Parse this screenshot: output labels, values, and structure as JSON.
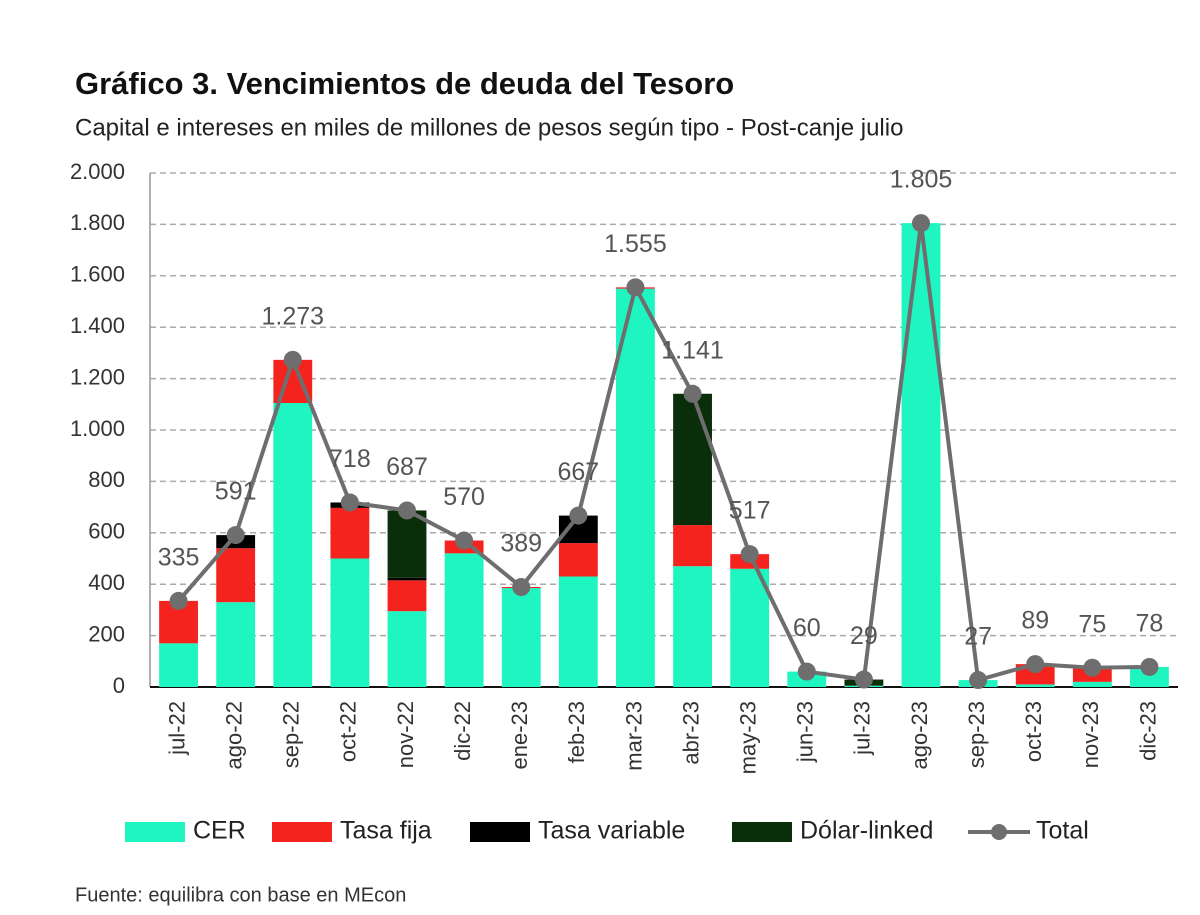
{
  "chart_data": {
    "type": "bar",
    "title": "Gráfico 3. Vencimientos de deuda del Tesoro",
    "subtitle": "Capital e intereses en miles de millones de pesos según tipo - Post-canje julio",
    "source": "Fuente: equilibra con base en MEcon",
    "stacked": true,
    "categories": [
      "jul-22",
      "ago-22",
      "sep-22",
      "oct-22",
      "nov-22",
      "dic-22",
      "ene-23",
      "feb-23",
      "mar-23",
      "abr-23",
      "may-23",
      "jun-23",
      "jul-23",
      "ago-23",
      "sep-23",
      "oct-23",
      "nov-23",
      "dic-23"
    ],
    "series": [
      {
        "name": "CER",
        "color": "#1ff5c0",
        "values": [
          170,
          330,
          1105,
          500,
          295,
          520,
          385,
          430,
          1550,
          470,
          460,
          60,
          5,
          1805,
          27,
          10,
          20,
          78
        ]
      },
      {
        "name": "Tasa fija",
        "color": "#f5231e",
        "values": [
          165,
          210,
          168,
          197,
          120,
          50,
          4,
          130,
          5,
          160,
          57,
          0,
          0,
          0,
          0,
          79,
          55,
          0
        ]
      },
      {
        "name": "Tasa variable",
        "color": "#000000",
        "values": [
          0,
          51,
          0,
          21,
          10,
          0,
          0,
          107,
          0,
          0,
          0,
          0,
          0,
          0,
          0,
          0,
          0,
          0
        ]
      },
      {
        "name": "Dólar-linked",
        "color": "#0a2e0a",
        "values": [
          0,
          0,
          0,
          0,
          262,
          0,
          0,
          0,
          0,
          511,
          0,
          0,
          24,
          0,
          0,
          0,
          0,
          0
        ]
      },
      {
        "name": "Total",
        "type": "line",
        "color": "#6e6e6e",
        "values": [
          335,
          591,
          1273,
          718,
          687,
          570,
          389,
          667,
          1555,
          1141,
          517,
          60,
          29,
          1805,
          27,
          89,
          75,
          78
        ],
        "value_labels": [
          "335",
          "591",
          "1.273",
          "718",
          "687",
          "570",
          "389",
          "667",
          "1.555",
          "1.141",
          "517",
          "60",
          "29",
          "1.805",
          "27",
          "89",
          "75",
          "78"
        ]
      }
    ],
    "ylim": [
      0,
      2000
    ],
    "yticks": [
      0,
      200,
      400,
      600,
      800,
      {
        "value": 1000,
        "label": "1.000"
      },
      {
        "value": 1200,
        "label": "1.200"
      },
      {
        "value": 1400,
        "label": "1.400"
      },
      {
        "value": 1600,
        "label": "1.600"
      },
      {
        "value": 1800,
        "label": "1.800"
      },
      {
        "value": 2000,
        "label": "2.000"
      }
    ],
    "grid": true,
    "legend": "bottom"
  }
}
